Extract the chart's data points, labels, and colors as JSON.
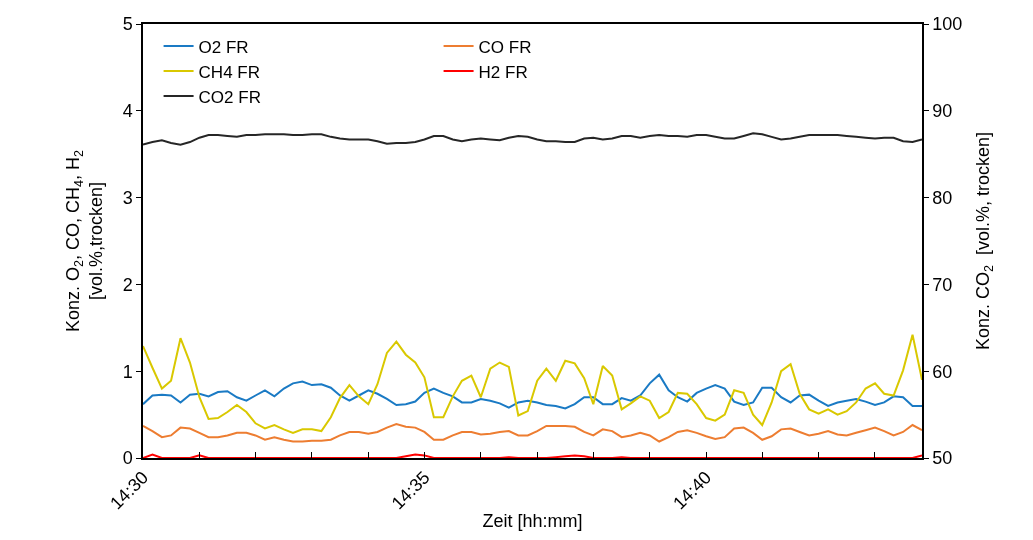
{
  "chart_data": {
    "type": "line",
    "xlabel": "Zeit [hh:mm]",
    "ylabel": "Konz. O$_{2}$, CO, CH$_{4}$, H$_{2}$\n[vol.%,trocken]",
    "y2label": "Konz. CO$_{2}$  [vol.%, trocken]",
    "x": [
      14.5,
      14.5028,
      14.5056,
      14.5083,
      14.5111,
      14.5139,
      14.5167,
      14.5194,
      14.5222,
      14.525,
      14.5278,
      14.5306,
      14.5333,
      14.5361,
      14.5389,
      14.5417,
      14.5444,
      14.5472,
      14.55,
      14.5528,
      14.5556,
      14.5583,
      14.5611,
      14.5639,
      14.5667,
      14.5694,
      14.5722,
      14.575,
      14.5778,
      14.5806,
      14.5833,
      14.5861,
      14.5889,
      14.5917,
      14.5944,
      14.5972,
      14.6,
      14.6028,
      14.6056,
      14.6083,
      14.6111,
      14.6139,
      14.6167,
      14.6194,
      14.6222,
      14.625,
      14.6278,
      14.6306,
      14.6333,
      14.6361,
      14.6389,
      14.6417,
      14.6444,
      14.6472,
      14.65,
      14.6528,
      14.6556,
      14.6583,
      14.6611,
      14.6639,
      14.6667,
      14.6694,
      14.6722,
      14.675,
      14.6778,
      14.6806,
      14.6833,
      14.6861,
      14.6889,
      14.6917,
      14.6944,
      14.6972,
      14.7,
      14.7028,
      14.7056,
      14.7083,
      14.7111,
      14.7139,
      14.7167,
      14.7194,
      14.7222,
      14.725,
      14.7278,
      14.7306
    ],
    "series": [
      {
        "name": "O2 FR",
        "color": "#1a7ac4",
        "values": [
          0.62,
          0.72,
          0.73,
          0.72,
          0.64,
          0.73,
          0.74,
          0.71,
          0.76,
          0.77,
          0.7,
          0.66,
          0.72,
          0.78,
          0.71,
          0.8,
          0.86,
          0.88,
          0.84,
          0.85,
          0.81,
          0.72,
          0.66,
          0.72,
          0.78,
          0.74,
          0.68,
          0.61,
          0.62,
          0.65,
          0.75,
          0.8,
          0.75,
          0.71,
          0.64,
          0.64,
          0.68,
          0.66,
          0.63,
          0.58,
          0.64,
          0.66,
          0.64,
          0.61,
          0.6,
          0.57,
          0.62,
          0.7,
          0.7,
          0.62,
          0.62,
          0.69,
          0.66,
          0.72,
          0.86,
          0.96,
          0.78,
          0.7,
          0.65,
          0.75,
          0.8,
          0.84,
          0.8,
          0.65,
          0.61,
          0.64,
          0.81,
          0.81,
          0.7,
          0.64,
          0.72,
          0.73,
          0.66,
          0.6,
          0.64,
          0.66,
          0.68,
          0.65,
          0.61,
          0.64,
          0.71,
          0.7,
          0.6,
          0.6
        ]
      },
      {
        "name": "CO FR",
        "color": "#ed7d31",
        "values": [
          0.37,
          0.31,
          0.24,
          0.26,
          0.35,
          0.34,
          0.29,
          0.24,
          0.24,
          0.26,
          0.29,
          0.29,
          0.26,
          0.21,
          0.24,
          0.21,
          0.19,
          0.19,
          0.2,
          0.2,
          0.21,
          0.26,
          0.3,
          0.3,
          0.28,
          0.3,
          0.35,
          0.39,
          0.36,
          0.35,
          0.3,
          0.21,
          0.21,
          0.26,
          0.3,
          0.3,
          0.27,
          0.28,
          0.3,
          0.31,
          0.26,
          0.26,
          0.31,
          0.37,
          0.37,
          0.37,
          0.36,
          0.3,
          0.26,
          0.33,
          0.31,
          0.24,
          0.26,
          0.29,
          0.26,
          0.19,
          0.24,
          0.3,
          0.32,
          0.29,
          0.25,
          0.22,
          0.24,
          0.34,
          0.35,
          0.29,
          0.21,
          0.25,
          0.33,
          0.34,
          0.3,
          0.26,
          0.28,
          0.31,
          0.27,
          0.26,
          0.29,
          0.32,
          0.35,
          0.31,
          0.26,
          0.3,
          0.38,
          0.32
        ]
      },
      {
        "name": "CH4 FR",
        "color": "#d9c800",
        "values": [
          1.29,
          1.04,
          0.8,
          0.89,
          1.38,
          1.1,
          0.7,
          0.45,
          0.46,
          0.53,
          0.61,
          0.53,
          0.4,
          0.34,
          0.38,
          0.33,
          0.29,
          0.33,
          0.33,
          0.31,
          0.47,
          0.69,
          0.84,
          0.71,
          0.62,
          0.85,
          1.21,
          1.34,
          1.19,
          1.1,
          0.93,
          0.47,
          0.47,
          0.71,
          0.89,
          0.95,
          0.7,
          1.03,
          1.1,
          1.05,
          0.49,
          0.54,
          0.89,
          1.03,
          0.89,
          1.12,
          1.09,
          0.92,
          0.62,
          1.06,
          0.95,
          0.56,
          0.63,
          0.71,
          0.66,
          0.46,
          0.53,
          0.75,
          0.74,
          0.62,
          0.46,
          0.43,
          0.5,
          0.78,
          0.75,
          0.5,
          0.38,
          0.64,
          1.0,
          1.08,
          0.74,
          0.56,
          0.51,
          0.56,
          0.5,
          0.54,
          0.64,
          0.8,
          0.86,
          0.74,
          0.72,
          1.01,
          1.42,
          0.9
        ]
      },
      {
        "name": "H2 FR",
        "color": "#ff0000",
        "values": [
          0,
          0.04,
          0,
          0,
          0,
          0,
          0.03,
          0,
          0,
          0,
          0,
          0,
          0,
          0,
          0,
          0,
          0,
          0,
          0,
          0,
          0,
          0,
          0,
          0,
          0,
          0,
          0,
          0,
          0.02,
          0.04,
          0.03,
          0,
          0,
          0,
          0,
          0,
          0,
          0,
          0,
          0.01,
          0,
          0,
          0,
          0,
          0.01,
          0.02,
          0.03,
          0.02,
          0,
          0,
          0,
          0.01,
          0,
          0,
          0,
          0,
          0,
          0,
          0,
          0,
          0,
          0,
          0,
          0,
          0,
          0,
          0,
          0,
          0,
          0,
          0,
          0,
          0,
          0,
          0,
          0,
          0,
          0,
          0,
          0,
          0,
          0,
          0,
          0.03
        ]
      },
      {
        "name": "CO2 FR",
        "color": "#262626",
        "axis": "y2",
        "values": [
          86.1,
          86.4,
          86.6,
          86.3,
          86.1,
          86.4,
          86.9,
          87.2,
          87.2,
          87.1,
          87.0,
          87.2,
          87.2,
          87.3,
          87.3,
          87.3,
          87.2,
          87.2,
          87.3,
          87.3,
          87.0,
          86.8,
          86.7,
          86.7,
          86.7,
          86.5,
          86.2,
          86.3,
          86.3,
          86.4,
          86.7,
          87.1,
          87.1,
          86.7,
          86.5,
          86.7,
          86.8,
          86.7,
          86.6,
          86.9,
          87.1,
          87.0,
          86.7,
          86.5,
          86.5,
          86.4,
          86.4,
          86.8,
          86.9,
          86.7,
          86.8,
          87.1,
          87.1,
          86.9,
          87.1,
          87.2,
          87.1,
          87.1,
          87.0,
          87.2,
          87.2,
          87.0,
          86.8,
          86.8,
          87.1,
          87.4,
          87.3,
          87.0,
          86.7,
          86.8,
          87.0,
          87.2,
          87.2,
          87.2,
          87.2,
          87.1,
          87.0,
          86.9,
          86.8,
          86.9,
          86.9,
          86.5,
          86.4,
          86.7
        ]
      }
    ],
    "xlim": [
      14.5,
      14.7306
    ],
    "xticks": [
      {
        "value": 14.5,
        "label": "14:30"
      },
      {
        "value": 14.516667,
        "label": null
      },
      {
        "value": 14.533333,
        "label": null
      },
      {
        "value": 14.55,
        "label": null
      },
      {
        "value": 14.566667,
        "label": null
      },
      {
        "value": 14.583333,
        "label": "14:35"
      },
      {
        "value": 14.6,
        "label": null
      },
      {
        "value": 14.616667,
        "label": null
      },
      {
        "value": 14.633333,
        "label": null
      },
      {
        "value": 14.65,
        "label": null
      },
      {
        "value": 14.666667,
        "label": "14:40"
      },
      {
        "value": 14.683333,
        "label": null
      },
      {
        "value": 14.7,
        "label": null
      },
      {
        "value": 14.716667,
        "label": null
      }
    ],
    "ylim": [
      0,
      5
    ],
    "yticks": [
      0,
      1,
      2,
      3,
      4,
      5
    ],
    "y2lim": [
      50,
      100
    ],
    "y2ticks": [
      50,
      60,
      70,
      80,
      90,
      100
    ],
    "legend": "top left",
    "marker": "none",
    "line_style": "solid"
  }
}
